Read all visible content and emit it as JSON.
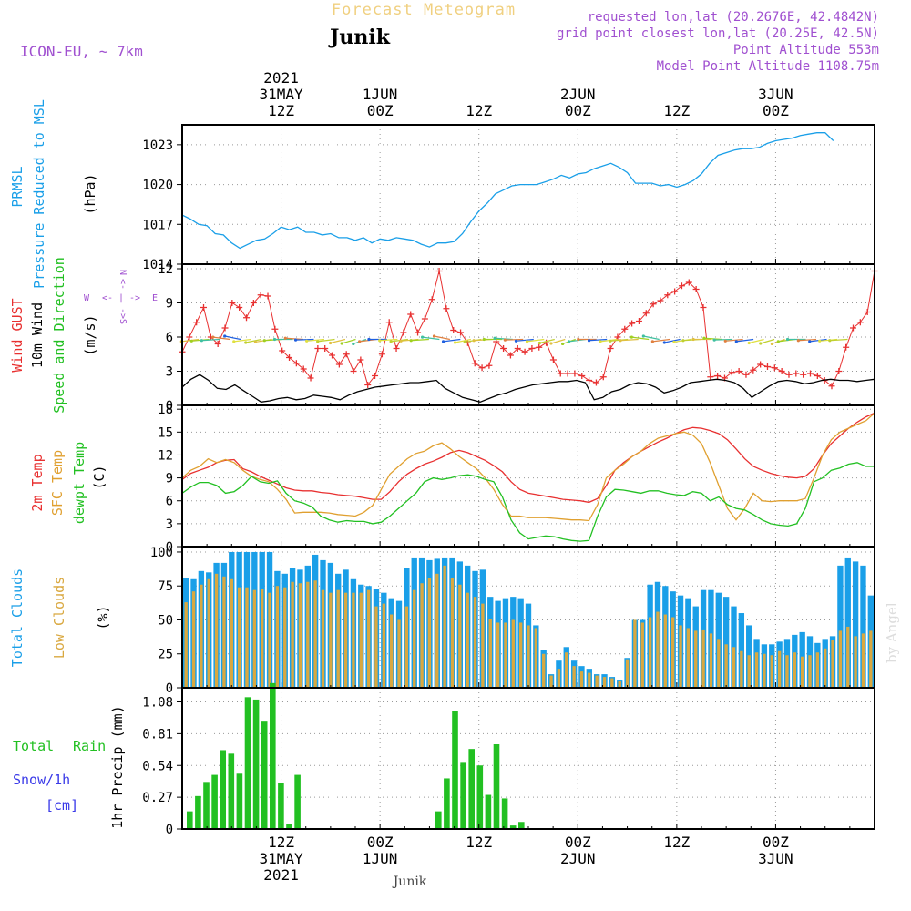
{
  "header": {
    "title": "Forecast Meteogram",
    "location": "Junik",
    "model": "ICON-EU, ~ 7km",
    "info_lines": [
      "requested lon,lat (20.2676E, 42.4842N)",
      "grid point closest lon,lat (20.25E, 42.5N)",
      "Point Altitude 553m",
      "Model Point Altitude 1108.75m"
    ],
    "footer_location": "Junik",
    "watermark": "by Angel"
  },
  "colors": {
    "pressure": "#1a9fe8",
    "gust": "#e83030",
    "wind": "#000000",
    "temp2m": "#e83030",
    "sfc": "#e0a030",
    "dewpt": "#22c022",
    "total_clouds": "#1a9fe8",
    "low_clouds": "#d9a840",
    "rain": "#22c022",
    "snow": "#3a3ae8",
    "purple": "#a050d0",
    "title": "#f0d080"
  },
  "time_axis": {
    "top_labels": [
      {
        "hour": 12,
        "lines": [
          "2021",
          "31MAY",
          "12Z"
        ]
      },
      {
        "hour": 24,
        "lines": [
          "1JUN",
          "00Z"
        ]
      },
      {
        "hour": 36,
        "lines": [
          "12Z"
        ]
      },
      {
        "hour": 48,
        "lines": [
          "2JUN",
          "00Z"
        ]
      },
      {
        "hour": 60,
        "lines": [
          "12Z"
        ]
      },
      {
        "hour": 72,
        "lines": [
          "3JUN",
          "00Z"
        ]
      }
    ],
    "bottom_labels": [
      {
        "hour": 12,
        "lines": [
          "12Z",
          "31MAY",
          "2021"
        ]
      },
      {
        "hour": 24,
        "lines": [
          "00Z",
          "1JUN"
        ]
      },
      {
        "hour": 36,
        "lines": [
          "12Z"
        ]
      },
      {
        "hour": 48,
        "lines": [
          "00Z",
          "2JUN"
        ]
      },
      {
        "hour": 60,
        "lines": [
          "12Z"
        ]
      },
      {
        "hour": 72,
        "lines": [
          "00Z",
          "3JUN"
        ]
      }
    ]
  },
  "panels": {
    "pressure": {
      "labels": [
        "PRMSL",
        "Pressure Reduced to MSL"
      ],
      "unit": "(hPa)",
      "ticks": [
        "1014",
        "1017",
        "1020",
        "1023"
      ]
    },
    "wind": {
      "labels": [
        "Wind GUST",
        "10m Wind",
        "Speed and Direction"
      ],
      "unit": "(m/s)",
      "ticks": [
        "0",
        "3",
        "6",
        "9",
        "12"
      ],
      "compass": {
        "w": "W",
        "e": "E",
        "n": "N",
        "s": "S",
        "arrow_left": "<-",
        "arrow_right": "->",
        "bar": "|"
      }
    },
    "temperature": {
      "labels": [
        "2m Temp",
        "SFC Temp",
        "dewpt Temp"
      ],
      "unit": "(C)",
      "ticks": [
        "0",
        "3",
        "6",
        "9",
        "12",
        "15",
        "18"
      ]
    },
    "clouds": {
      "labels": [
        "Total Clouds",
        "Low Clouds"
      ],
      "unit": "(%)",
      "ticks": [
        "0",
        "25",
        "50",
        "75",
        "100"
      ]
    },
    "precip": {
      "labels": [
        "Total",
        "Rain",
        "Snow/1h",
        "[cm]"
      ],
      "unit": "1hr Precip (mm)",
      "ticks": [
        "0",
        "0.27",
        "0.54",
        "0.81",
        "1.08"
      ]
    }
  },
  "chart_data": [
    {
      "type": "line",
      "title": "PRMSL Pressure Reduced to MSL",
      "ylabel": "hPa",
      "ylim": [
        1014,
        1024.5
      ],
      "x_hours_from": 0,
      "x_step": 1,
      "series": [
        {
          "name": "PRMSL",
          "values": [
            1017.7,
            1017.4,
            1017.0,
            1016.9,
            1016.3,
            1016.2,
            1015.6,
            1015.2,
            1015.5,
            1015.8,
            1015.9,
            1016.3,
            1016.8,
            1016.6,
            1016.8,
            1016.4,
            1016.4,
            1016.2,
            1016.3,
            1016.0,
            1016.0,
            1015.8,
            1016.0,
            1015.6,
            1015.9,
            1015.8,
            1016.0,
            1015.9,
            1015.8,
            1015.5,
            1015.3,
            1015.6,
            1015.6,
            1015.7,
            1016.3,
            1017.2,
            1018.0,
            1018.6,
            1019.3,
            1019.6,
            1019.9,
            1020.0,
            1020.0,
            1020.0,
            1020.2,
            1020.4,
            1020.7,
            1020.5,
            1020.8,
            1020.9,
            1021.2,
            1021.4,
            1021.6,
            1021.3,
            1020.9,
            1020.1,
            1020.1,
            1020.1,
            1019.9,
            1020.0,
            1019.8,
            1020.0,
            1020.3,
            1020.8,
            1021.6,
            1022.2,
            1022.4,
            1022.6,
            1022.7,
            1022.7,
            1022.8,
            1023.1,
            1023.3,
            1023.4,
            1023.5,
            1023.7,
            1023.8,
            1023.9,
            1023.9,
            1023.3
          ]
        }
      ]
    },
    {
      "type": "line",
      "title": "Wind GUST / 10m Wind Speed and Direction",
      "ylabel": "m/s",
      "ylim": [
        0,
        12.2
      ],
      "series": [
        {
          "name": "Wind GUST",
          "x_start": 0,
          "x_step": 1,
          "values": [
            4.7,
            6.0,
            7.3,
            8.6,
            6.0,
            5.4,
            6.8,
            9.0,
            8.6,
            7.7,
            9.0,
            9.7,
            9.6,
            6.7,
            4.8,
            4.2,
            3.7,
            3.2,
            2.4,
            5.0,
            5.0,
            4.4,
            3.6,
            4.5,
            3.0,
            4.0,
            1.8,
            2.6,
            4.5,
            7.3,
            5.0,
            6.4,
            8.0,
            6.4,
            7.6,
            9.3,
            11.8,
            8.5,
            6.6,
            6.4,
            5.5,
            3.7,
            3.3,
            3.5,
            5.6,
            5.0,
            4.4,
            5.0,
            4.7,
            5.0,
            5.1,
            5.5,
            4.0,
            2.8,
            2.8,
            2.8,
            2.6,
            2.2,
            2.0,
            2.5,
            5.0,
            6.0,
            6.7,
            7.2,
            7.4,
            8.1,
            8.9,
            9.2,
            9.7,
            10.0,
            10.5,
            10.8,
            10.2,
            8.6,
            2.5,
            2.6,
            2.4,
            2.9,
            3.0,
            2.7,
            3.1,
            3.6,
            3.4,
            3.3,
            3.0,
            2.7,
            2.8,
            2.7,
            2.8,
            2.6,
            2.2,
            1.7,
            3.0,
            5.1,
            6.8,
            7.3,
            8.2,
            11.8
          ]
        },
        {
          "name": "10m Wind",
          "x_start": 0,
          "x_step": 3,
          "values": [
            1.6,
            2.3,
            2.7,
            2.2,
            1.5,
            1.4,
            1.8,
            1.3,
            0.8,
            0.3,
            0.4,
            0.6,
            0.7,
            0.5,
            0.6,
            0.9,
            0.8,
            0.7,
            0.5,
            0.9,
            1.2,
            1.4,
            1.6,
            1.7,
            1.8,
            1.9,
            2.0,
            2.0,
            2.1,
            2.2,
            1.5,
            1.1,
            0.7,
            0.5,
            0.3,
            0.6,
            0.9,
            1.1,
            1.4,
            1.6,
            1.8,
            1.9,
            2.0,
            2.1,
            2.1,
            2.2,
            2.0,
            0.5,
            0.7,
            1.2,
            1.4,
            1.8,
            2.0,
            1.9,
            1.6,
            1.1,
            1.3,
            1.6,
            2.0,
            2.1,
            2.2,
            2.3,
            2.2,
            2.0,
            1.5,
            0.7,
            1.2,
            1.7,
            2.1,
            2.2,
            2.1,
            1.9,
            2.0,
            2.2,
            2.3,
            2.2,
            2.2,
            2.1,
            2.2,
            2.3
          ]
        }
      ]
    },
    {
      "type": "line",
      "title": "2m Temp / SFC Temp / dewpt Temp",
      "ylabel": "C",
      "ylim": [
        0,
        18.5
      ],
      "x_hours_from": 0,
      "x_step": 3,
      "series": [
        {
          "name": "2m Temp",
          "values": [
            8.8,
            9.6,
            10.0,
            10.4,
            11.0,
            11.3,
            11.4,
            10.2,
            9.8,
            9.2,
            8.7,
            8.2,
            7.7,
            7.4,
            7.3,
            7.3,
            7.1,
            7.0,
            6.8,
            6.7,
            6.6,
            6.4,
            6.2,
            6.2,
            7.2,
            8.5,
            9.5,
            10.2,
            10.8,
            11.2,
            11.7,
            12.3,
            12.6,
            12.3,
            11.8,
            11.3,
            10.6,
            9.8,
            8.5,
            7.5,
            7.0,
            6.8,
            6.6,
            6.4,
            6.2,
            6.1,
            6.0,
            5.8,
            6.3,
            8.0,
            10.0,
            11.0,
            11.8,
            12.5,
            13.1,
            13.7,
            14.2,
            14.8,
            15.3,
            15.6,
            15.5,
            15.2,
            14.8,
            14.0,
            12.8,
            11.5,
            10.5,
            10.0,
            9.6,
            9.3,
            9.1,
            9.0,
            9.2,
            10.2,
            12.0,
            13.5,
            14.5,
            15.5,
            16.3,
            17.0,
            17.5
          ]
        },
        {
          "name": "SFC Temp",
          "values": [
            9.0,
            10.0,
            10.5,
            11.5,
            11.0,
            11.4,
            11.0,
            10.0,
            9.2,
            8.8,
            8.5,
            7.5,
            6.2,
            4.4,
            4.5,
            4.5,
            4.5,
            4.4,
            4.2,
            4.1,
            4.0,
            4.5,
            5.4,
            7.5,
            9.5,
            10.5,
            11.5,
            12.2,
            12.5,
            13.2,
            13.6,
            12.8,
            11.8,
            11.0,
            10.2,
            9.0,
            7.5,
            5.5,
            4.0,
            4.0,
            3.8,
            3.8,
            3.8,
            3.7,
            3.6,
            3.5,
            3.5,
            3.4,
            5.5,
            9.0,
            10.0,
            10.8,
            11.8,
            12.5,
            13.5,
            14.2,
            14.5,
            14.8,
            15.0,
            14.6,
            13.5,
            11.0,
            8.0,
            5.0,
            3.5,
            5.0,
            7.0,
            6.0,
            5.9,
            6.0,
            6.0,
            6.0,
            6.3,
            9.0,
            12.0,
            14.0,
            15.0,
            15.5,
            16.0,
            16.5,
            17.5
          ]
        },
        {
          "name": "dewpt Temp",
          "values": [
            7.0,
            7.8,
            8.4,
            8.4,
            8.0,
            7.0,
            7.2,
            8.0,
            9.2,
            8.5,
            8.3,
            8.6,
            7.0,
            6.0,
            5.7,
            5.2,
            4.0,
            3.5,
            3.2,
            3.4,
            3.3,
            3.3,
            3.0,
            3.2,
            4.0,
            5.0,
            6.0,
            7.0,
            8.5,
            9.0,
            8.8,
            9.0,
            9.3,
            9.4,
            9.2,
            8.8,
            8.5,
            6.5,
            3.5,
            1.8,
            1.0,
            1.2,
            1.4,
            1.3,
            1.0,
            0.8,
            0.7,
            0.8,
            4.0,
            6.5,
            7.5,
            7.4,
            7.2,
            7.0,
            7.3,
            7.3,
            7.0,
            6.8,
            6.7,
            7.2,
            7.0,
            6.0,
            6.5,
            5.5,
            5.0,
            4.8,
            4.2,
            3.5,
            3.0,
            2.8,
            2.7,
            3.0,
            5.0,
            8.5,
            9.0,
            10.0,
            10.3,
            10.8,
            11.0,
            10.5,
            10.5
          ]
        }
      ]
    },
    {
      "type": "bar",
      "title": "Total Clouds / Low Clouds",
      "ylabel": "%",
      "ylim": [
        0,
        103
      ],
      "x_hours_from": 0,
      "x_step": 1,
      "series": [
        {
          "name": "Total Clouds",
          "values": [
            81,
            80,
            86,
            85,
            92,
            92,
            100,
            100,
            100,
            100,
            100,
            100,
            86,
            84,
            88,
            87,
            90,
            98,
            94,
            92,
            84,
            87,
            80,
            76,
            75,
            73,
            70,
            66,
            64,
            88,
            96,
            96,
            94,
            95,
            96,
            96,
            93,
            90,
            86,
            87,
            67,
            64,
            66,
            67,
            66,
            62,
            46,
            28,
            10,
            20,
            30,
            20,
            16,
            14,
            10,
            10,
            8,
            6,
            22,
            50,
            50,
            76,
            78,
            75,
            71,
            68,
            66,
            60,
            72,
            72,
            70,
            67,
            60,
            55,
            46,
            36,
            32,
            32,
            34,
            36,
            39,
            41,
            38,
            33,
            36,
            38,
            90,
            96,
            93,
            90,
            68
          ]
        },
        {
          "name": "Low Clouds",
          "values": [
            63,
            71,
            76,
            80,
            84,
            82,
            80,
            74,
            74,
            72,
            73,
            70,
            75,
            74,
            78,
            77,
            78,
            79,
            72,
            70,
            72,
            70,
            70,
            70,
            72,
            60,
            62,
            54,
            50,
            60,
            72,
            77,
            81,
            84,
            90,
            81,
            76,
            70,
            67,
            62,
            51,
            48,
            48,
            50,
            48,
            46,
            44,
            25,
            9,
            14,
            26,
            16,
            12,
            11,
            9,
            8,
            7,
            5,
            21,
            50,
            48,
            52,
            56,
            54,
            52,
            46,
            44,
            42,
            43,
            40,
            36,
            32,
            30,
            27,
            24,
            26,
            25,
            24,
            27,
            24,
            26,
            23,
            24,
            26,
            29,
            35,
            42,
            45,
            38,
            40,
            42
          ]
        }
      ]
    },
    {
      "type": "bar",
      "title": "1hr Precip",
      "ylabel": "mm",
      "ylim": [
        0,
        1.2
      ],
      "series": [
        {
          "name": "Rain",
          "x_start": 0,
          "x_step": 1,
          "values": [
            0.15,
            0.28,
            0.4,
            0.46,
            0.67,
            0.64,
            0.47,
            1.12,
            1.1,
            0.92,
            1.24,
            0.39,
            0.04,
            0.46,
            0,
            0,
            0,
            0,
            0,
            0,
            0,
            0,
            0,
            0,
            0,
            0,
            0,
            0,
            0,
            0,
            0.15,
            0.43,
            1.0,
            0.57,
            0.68,
            0.54,
            0.29,
            0.72,
            0.26,
            0.03,
            0.06
          ]
        }
      ]
    }
  ]
}
